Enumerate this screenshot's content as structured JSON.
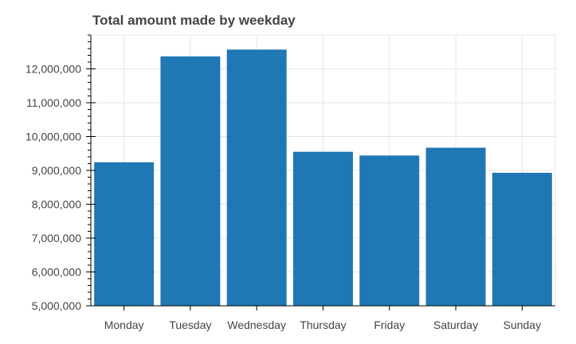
{
  "chart_data": {
    "type": "bar",
    "title": "Total amount made by weekday",
    "xlabel": "",
    "ylabel": "",
    "categories": [
      "Monday",
      "Tuesday",
      "Wednesday",
      "Thursday",
      "Friday",
      "Saturday",
      "Sunday"
    ],
    "values": [
      9240000,
      12370000,
      12570000,
      9550000,
      9440000,
      9670000,
      8930000
    ],
    "ylim": [
      5000000,
      13000000
    ],
    "yticks": [
      5000000,
      6000000,
      7000000,
      8000000,
      9000000,
      10000000,
      11000000,
      12000000
    ],
    "ytick_labels": [
      "5,000,000",
      "6,000,000",
      "7,000,000",
      "8,000,000",
      "9,000,000",
      "10,000,000",
      "11,000,000",
      "12,000,000"
    ],
    "grid": true,
    "legend": "none",
    "bar_color": "#1f77b4",
    "grid_color": "#e5e5e5",
    "axis_color": "#000000",
    "tick_label_color": "#444444"
  }
}
